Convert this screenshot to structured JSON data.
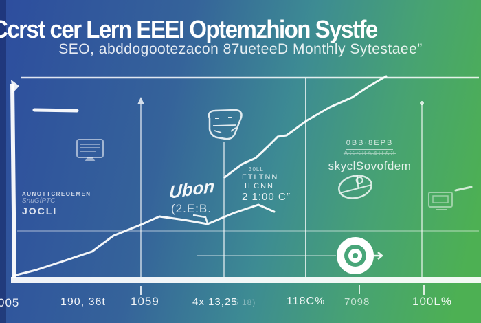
{
  "header": {
    "title": "Ccrst cer Lern EEEI Optemzhion Systfe",
    "subtitle": "SEO, abddogootezacon 87ueteeD Monthly Sytestaee”"
  },
  "colors": {
    "bg_blue": "#2d4d9e",
    "bg_teal": "#3d8b93",
    "bg_green": "#4db053",
    "line_color": "#ffffff"
  },
  "chart_data": {
    "type": "line",
    "title": "Ccrst cer Lern EEEI Optemzhion Systfe",
    "subtitle": "SEO, abddogootezacon 87ueteeD Monthly Sytestaee”",
    "xlabel": "",
    "ylabel": "",
    "ylim": [
      0,
      100
    ],
    "grid": "vertical gridlines at ticks 1059 / 4x 13,25 / 118C% / 100L%, one horizontal gridline",
    "legend": "none",
    "x_tick_labels": [
      "005",
      "190, 36t",
      "1059",
      "4x 13,25",
      "5 18)",
      "118C%",
      "7098",
      "100L%"
    ],
    "series": [
      {
        "name": "lower-trend-line",
        "description": "zigzag trend rising from bottom-left, small dip after first peak",
        "values_pct": [
          1,
          4,
          8,
          13,
          21,
          26,
          30,
          28,
          27,
          32,
          36,
          33
        ],
        "pixel_points": "20,401 52,393 92,380 134,366 165,343 205,327 232,315 268,320 302,326 340,310 376,298 399,308"
      },
      {
        "name": "upper-trend-line",
        "description": "steep rising line from center to top-right",
        "values_pct": [
          50,
          57,
          60,
          66,
          70,
          71,
          78,
          85,
          90,
          95,
          100
        ],
        "pixel_points": "327,258 352,239 372,230 390,213 404,199 417,197 447,175 480,156 512,142 536,126 562,111"
      },
      {
        "name": "notch-segment",
        "description": "small step notch under first peak",
        "values_pct": [
          31,
          30,
          27
        ],
        "pixel_points": "281,313 299,316 302,325"
      }
    ],
    "annotations": {
      "left_block": {
        "line1": "AUNOTTCREOEMEN",
        "line2": "SnuGfPTC",
        "line3": "JOCLI"
      },
      "ubon": {
        "script": "Ubon",
        "value": "(2.E:B."
      },
      "mid_block": {
        "line1": "30LL",
        "line2": "FTLTNN",
        "line3": "ILCNN",
        "line4": "2 1:00 C″"
      },
      "right_block": {
        "line1": "0BB·8EPB",
        "line2": "AGS8A4UA3",
        "line3": "skyclSovofdem"
      }
    },
    "icons": [
      "monitor-icon",
      "gem-icon",
      "mouse-icon",
      "small-monitor-icon",
      "target-bullseye-icon",
      "arrow-right-icon",
      "dash-mark-left",
      "dash-mark-right"
    ]
  }
}
